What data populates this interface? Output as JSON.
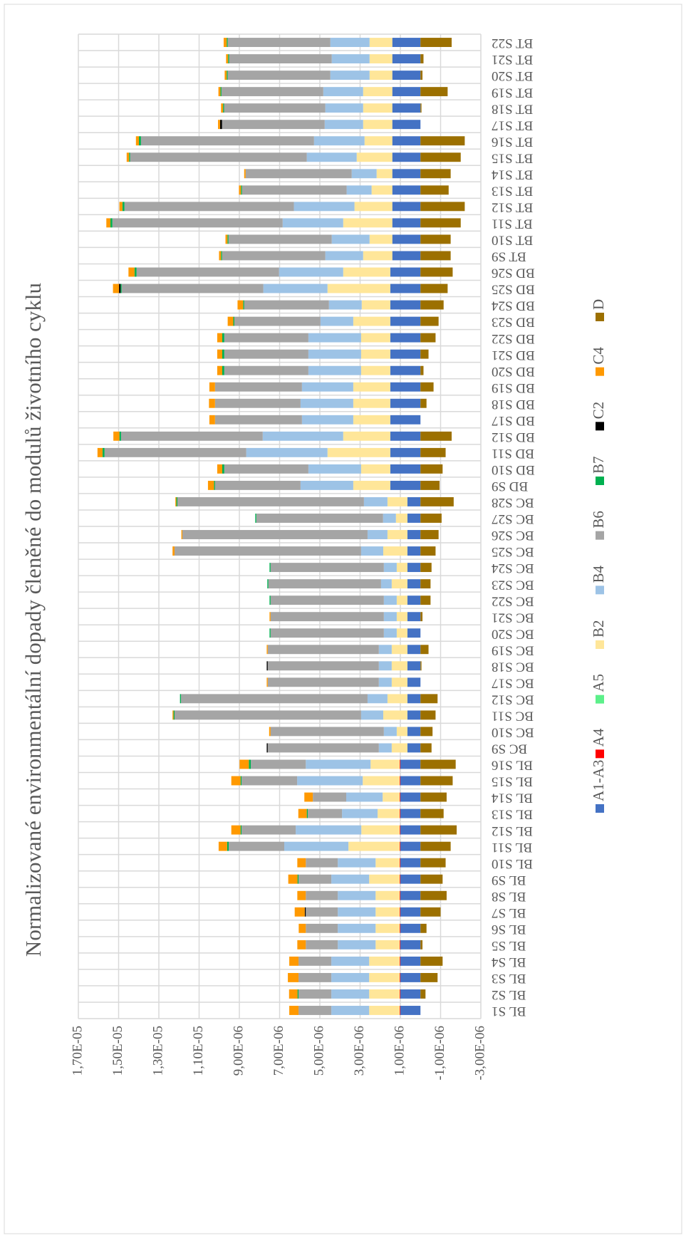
{
  "chart_data": {
    "type": "stacked_bar",
    "title": "Normalizované environmentální dopady členěné do modulů životního cyklu",
    "categories": [
      "BL S1",
      "BL S2",
      "BL S3",
      "BL S4",
      "BL S5",
      "BL S6",
      "BL S7",
      "BL S8",
      "BL S9",
      "BL S10",
      "BL S11",
      "BL S12",
      "BL S13",
      "BL S14",
      "BL S15",
      "BL S16",
      "BC S9",
      "BC S10",
      "BC S11",
      "BC S12",
      "BC S17",
      "BC S18",
      "BC S19",
      "BC S20",
      "BC S21",
      "BC S22",
      "BC S23",
      "BC S24",
      "BC S25",
      "BC S26",
      "BC S27",
      "BC S28",
      "BD S9",
      "BD S10",
      "BD S11",
      "BD S12",
      "BD S17",
      "BD S18",
      "BD S19",
      "BD S20",
      "BD S21",
      "BD S22",
      "BD S23",
      "BD S24",
      "BD S25",
      "BD S26",
      "BT S9",
      "BT S10",
      "BT S11",
      "BT S12",
      "BT S13",
      "BT S14",
      "BT S15",
      "BT S16",
      "BT S17",
      "BT S18",
      "BT S19",
      "BT S20",
      "BT S21",
      "BT S22"
    ],
    "ylim": [
      -3e-06,
      1.7e-05
    ],
    "yticks": [
      {
        "value": 1.7e-05,
        "label": "1,70E-05"
      },
      {
        "value": 1.5e-05,
        "label": "1,50E-05"
      },
      {
        "value": 1.3e-05,
        "label": "1,30E-05"
      },
      {
        "value": 1.1e-05,
        "label": "1,10E-05"
      },
      {
        "value": 9e-06,
        "label": "9,00E-06"
      },
      {
        "value": 7e-06,
        "label": "7,00E-06"
      },
      {
        "value": 5e-06,
        "label": "5,00E-06"
      },
      {
        "value": 3e-06,
        "label": "3,00E-06"
      },
      {
        "value": 1e-06,
        "label": "1,00E-06"
      },
      {
        "value": -1e-06,
        "label": "-1,00E-06"
      },
      {
        "value": -3e-06,
        "label": "-3,00E-06"
      }
    ],
    "grid": true,
    "legend": "bottom",
    "series": [
      {
        "name": "A1-A3",
        "color": "#4472c4",
        "values": [
          1e-06,
          1e-06,
          1e-06,
          1e-06,
          1e-06,
          1e-06,
          1e-06,
          1e-06,
          1e-06,
          1e-06,
          1e-06,
          1e-06,
          1e-06,
          1e-06,
          1e-06,
          1e-06,
          6.5e-07,
          6.5e-07,
          6.5e-07,
          6.5e-07,
          6.5e-07,
          6.5e-07,
          6.5e-07,
          6.5e-07,
          6.5e-07,
          6.5e-07,
          6.5e-07,
          6.5e-07,
          6.5e-07,
          6.5e-07,
          6.5e-07,
          6.5e-07,
          1.5e-06,
          1.5e-06,
          1.5e-06,
          1.5e-06,
          1.5e-06,
          1.5e-06,
          1.5e-06,
          1.5e-06,
          1.5e-06,
          1.5e-06,
          1.5e-06,
          1.5e-06,
          1.5e-06,
          1.5e-06,
          1.4e-06,
          1.4e-06,
          1.4e-06,
          1.4e-06,
          1.4e-06,
          1.4e-06,
          1.4e-06,
          1.4e-06,
          1.4e-06,
          1.4e-06,
          1.4e-06,
          1.4e-06,
          1.4e-06,
          1.4e-06
        ]
      },
      {
        "name": "A4",
        "color": "#ff0000",
        "values": [
          3e-08,
          3e-08,
          3e-08,
          3e-08,
          3e-08,
          3e-08,
          3e-08,
          3e-08,
          3e-08,
          3e-08,
          3e-08,
          3e-08,
          3e-08,
          3e-08,
          3e-08,
          3e-08,
          0,
          0,
          0,
          0,
          0,
          0,
          0,
          0,
          0,
          0,
          0,
          0,
          0,
          0,
          0,
          0,
          0,
          0,
          0,
          0,
          0,
          0,
          0,
          0,
          0,
          0,
          0,
          0,
          0,
          0,
          0,
          0,
          0,
          0,
          0,
          0,
          0,
          0,
          0,
          0,
          0,
          0,
          0,
          0
        ]
      },
      {
        "name": "A5",
        "color": "#5cf08a",
        "values": [
          0,
          0,
          0,
          0,
          0,
          0,
          0,
          0,
          0,
          0,
          0,
          0,
          0,
          0,
          0,
          0,
          0,
          0,
          0,
          0,
          0,
          0,
          0,
          0,
          0,
          0,
          0,
          0,
          0,
          0,
          0,
          0,
          0,
          0,
          0,
          0,
          0,
          0,
          0,
          0,
          0,
          0,
          0,
          0,
          0,
          0,
          0,
          0,
          0,
          0,
          0,
          0,
          0,
          0,
          0,
          0,
          0,
          0,
          0,
          0
        ]
      },
      {
        "name": "B2",
        "color": "#ffe699",
        "values": [
          1.52e-06,
          1.52e-06,
          1.52e-06,
          1.52e-06,
          1.2e-06,
          1.2e-06,
          1.2e-06,
          1.2e-06,
          1.52e-06,
          1.2e-06,
          2.55e-06,
          1.91e-06,
          1.1e-06,
          8.5e-07,
          1.84e-06,
          1.45e-06,
          7.8e-07,
          5.3e-07,
          1.2e-06,
          9.9e-07,
          7.8e-07,
          7.8e-07,
          7.8e-07,
          5.3e-07,
          5.3e-07,
          5.3e-07,
          7.8e-07,
          5.3e-07,
          1.2e-06,
          9.9e-07,
          5.7e-07,
          9.9e-07,
          1.84e-06,
          1.45e-06,
          3.12e-06,
          2.34e-06,
          1.84e-06,
          1.84e-06,
          1.84e-06,
          1.45e-06,
          1.45e-06,
          1.45e-06,
          1.84e-06,
          1.42e-06,
          3.12e-06,
          2.34e-06,
          1.45e-06,
          1.13e-06,
          2.44e-06,
          1.88e-06,
          1.03e-06,
          7.8e-07,
          1.77e-06,
          1.38e-06,
          1.45e-06,
          1.45e-06,
          1.45e-06,
          1.13e-06,
          1.13e-06,
          1.13e-06
        ]
      },
      {
        "name": "B4",
        "color": "#9dc3e6",
        "values": [
          1.88e-06,
          1.88e-06,
          1.88e-06,
          1.88e-06,
          1.88e-06,
          1.88e-06,
          1.88e-06,
          1.88e-06,
          1.88e-06,
          1.88e-06,
          3.19e-06,
          3.26e-06,
          1.77e-06,
          1.81e-06,
          3.26e-06,
          3.22e-06,
          6.4e-07,
          6.4e-07,
          1.1e-06,
          9.9e-07,
          6.4e-07,
          6.4e-07,
          6.4e-07,
          6.4e-07,
          6.4e-07,
          6.4e-07,
          5.3e-07,
          6.4e-07,
          1.1e-06,
          9.9e-07,
          6.4e-07,
          1.17e-06,
          2.62e-06,
          2.62e-06,
          4.04e-06,
          4e-06,
          2.55e-06,
          2.62e-06,
          2.55e-06,
          2.62e-06,
          2.62e-06,
          2.62e-06,
          1.63e-06,
          1.63e-06,
          3.19e-06,
          3.19e-06,
          1.88e-06,
          1.88e-06,
          3.01e-06,
          3.01e-06,
          1.24e-06,
          1.24e-06,
          2.48e-06,
          2.51e-06,
          1.91e-06,
          1.88e-06,
          1.98e-06,
          1.95e-06,
          1.88e-06,
          1.95e-06
        ]
      },
      {
        "name": "B6",
        "color": "#a5a5a5",
        "values": [
          1.63e-06,
          1.63e-06,
          1.63e-06,
          1.63e-06,
          1.59e-06,
          1.59e-06,
          1.59e-06,
          1.59e-06,
          1.63e-06,
          1.59e-06,
          2.76e-06,
          2.69e-06,
          1.7e-06,
          1.66e-06,
          2.76e-06,
          2.73e-06,
          5.52e-06,
          5.63e-06,
          9.27e-06,
          9.27e-06,
          5.52e-06,
          5.52e-06,
          5.52e-06,
          5.63e-06,
          5.63e-06,
          5.63e-06,
          5.6e-06,
          5.63e-06,
          9.27e-06,
          9.2e-06,
          6.3e-06,
          9.27e-06,
          4.25e-06,
          4.18e-06,
          7.04e-06,
          7.04e-06,
          4.32e-06,
          4.25e-06,
          4.32e-06,
          4.18e-06,
          4.18e-06,
          4.18e-06,
          4.28e-06,
          4.21e-06,
          7.04e-06,
          7.08e-06,
          5.13e-06,
          5.13e-06,
          8.46e-06,
          8.42e-06,
          5.2e-06,
          5.27e-06,
          8.78e-06,
          8.6e-06,
          5.1e-06,
          5.03e-06,
          5.06e-06,
          5.1e-06,
          5.1e-06,
          5.1e-06
        ]
      },
      {
        "name": "B7",
        "color": "#00b050",
        "values": [
          0,
          5e-08,
          0,
          0,
          0,
          0,
          0,
          0,
          5e-08,
          0,
          8e-08,
          5e-08,
          5e-08,
          0,
          5e-08,
          1e-07,
          0,
          0,
          5e-08,
          5e-08,
          0,
          0,
          0,
          5e-08,
          0,
          5e-08,
          5e-08,
          5e-08,
          0,
          0,
          5e-08,
          5e-08,
          5e-08,
          1e-07,
          1e-07,
          8e-08,
          0,
          0,
          0,
          1e-07,
          1e-07,
          1e-07,
          5e-08,
          5e-08,
          5e-08,
          1e-07,
          5e-08,
          5e-08,
          1e-07,
          1e-07,
          5e-08,
          0,
          5e-08,
          1e-07,
          0,
          5e-08,
          5e-08,
          5e-08,
          5e-08,
          5e-08
        ]
      },
      {
        "name": "C2",
        "color": "#000000",
        "values": [
          0,
          0,
          0,
          0,
          0,
          0,
          5e-08,
          0,
          0,
          0,
          0,
          0,
          0,
          0,
          0,
          0,
          5e-08,
          0,
          0,
          0,
          0,
          5e-08,
          0,
          0,
          0,
          0,
          0,
          0,
          0,
          0,
          0,
          0,
          0,
          0,
          0,
          0,
          0,
          0,
          0,
          0,
          0,
          0,
          0,
          0,
          8e-08,
          0,
          0,
          0,
          0,
          0,
          0,
          0,
          0,
          0,
          1e-07,
          0,
          0,
          0,
          0,
          0
        ]
      },
      {
        "name": "C4",
        "color": "#ff9900",
        "values": [
          4.6e-07,
          4.2e-07,
          5.3e-07,
          4.6e-07,
          4.2e-07,
          3.5e-07,
          5e-07,
          4.2e-07,
          4.6e-07,
          4.2e-07,
          4.2e-07,
          4.6e-07,
          4.2e-07,
          4.2e-07,
          4.6e-07,
          4.6e-07,
          0,
          7e-08,
          5e-08,
          0,
          5e-08,
          0,
          5e-08,
          0,
          5e-08,
          0,
          0,
          0,
          1e-07,
          5e-08,
          0,
          5e-08,
          3e-07,
          2.5e-07,
          2.5e-07,
          3e-07,
          2.8e-07,
          3e-07,
          2.8e-07,
          2.5e-07,
          2.5e-07,
          2.5e-07,
          2.8e-07,
          2.8e-07,
          3e-07,
          3e-07,
          1e-07,
          1e-07,
          2e-07,
          1.5e-07,
          1e-07,
          7e-08,
          1.2e-07,
          1.5e-07,
          1e-07,
          1e-07,
          1e-07,
          1e-07,
          1e-07,
          1.5e-07
        ]
      },
      {
        "name": "D",
        "color": "#9c7000",
        "values": [
          0,
          -2.5e-07,
          -8.5e-07,
          -1.1e-06,
          -1e-07,
          -3e-07,
          -1e-06,
          -1.3e-06,
          -1.1e-06,
          -1.25e-06,
          -1.5e-06,
          -1.8e-06,
          -1.15e-06,
          -1.3e-06,
          -1.6e-06,
          -1.75e-06,
          -5.5e-07,
          -6e-07,
          -7.5e-07,
          -8.5e-07,
          0,
          -5e-08,
          -4e-07,
          0,
          -1e-07,
          -5e-07,
          -5e-07,
          -5.5e-07,
          -7.5e-07,
          -9e-07,
          -1.05e-06,
          -1.65e-06,
          -9.5e-07,
          -1.1e-06,
          -1.25e-06,
          -1.55e-06,
          0,
          -3e-07,
          -6.5e-07,
          -1.5e-07,
          -4e-07,
          -7.5e-07,
          -9e-07,
          -1.15e-06,
          -1.35e-06,
          -1.6e-06,
          -1.5e-06,
          -1.5e-06,
          -2e-06,
          -2.2e-06,
          -1.4e-06,
          -1.5e-06,
          -2e-06,
          -2.2e-06,
          0,
          -5e-08,
          -1.35e-06,
          -1e-07,
          -1.5e-07,
          -1.55e-06
        ]
      }
    ]
  }
}
